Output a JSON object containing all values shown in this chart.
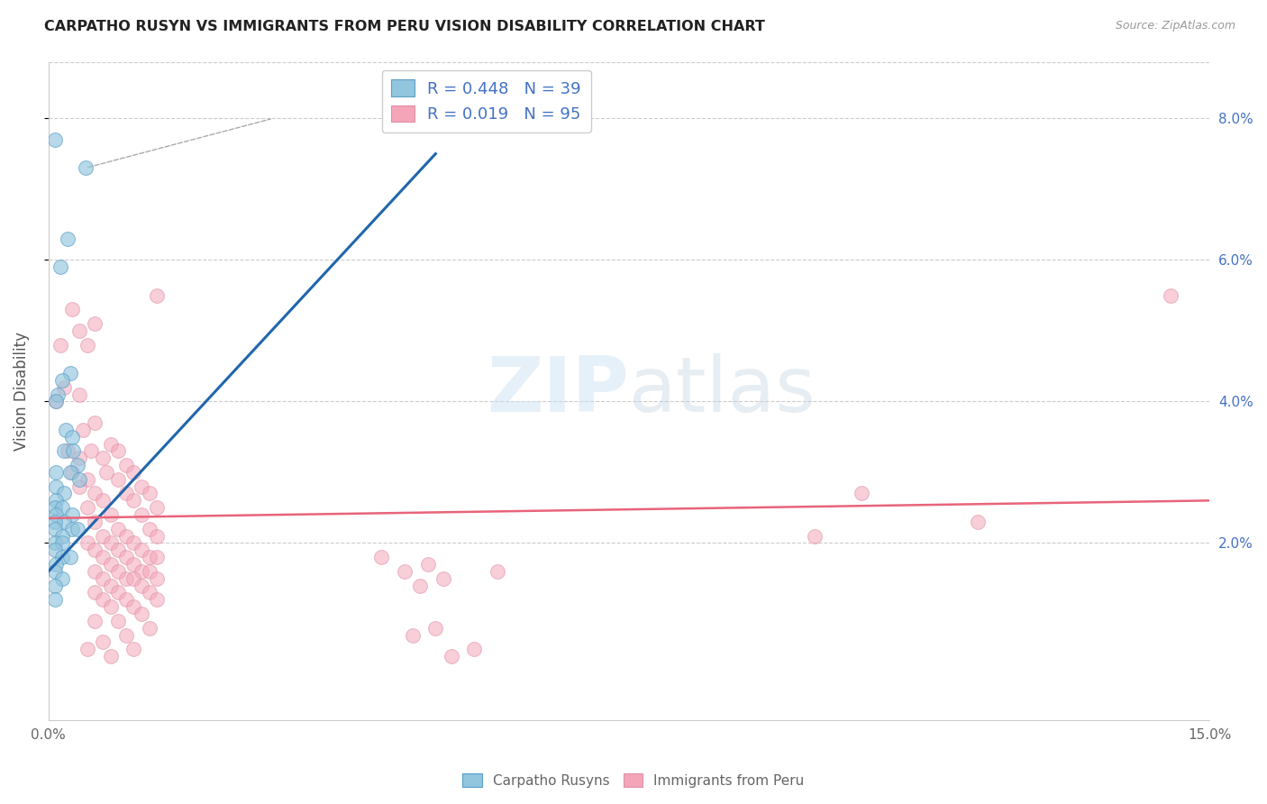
{
  "title": "CARPATHO RUSYN VS IMMIGRANTS FROM PERU VISION DISABILITY CORRELATION CHART",
  "source": "Source: ZipAtlas.com",
  "ylabel": "Vision Disability",
  "color_blue": "#92c5de",
  "color_pink": "#f4a6b8",
  "color_blue_line": "#2166ac",
  "color_pink_line": "#d6604d",
  "color_pink_line2": "#e8647a",
  "xmin": 0.0,
  "xmax": 0.15,
  "ymin": -0.005,
  "ymax": 0.088,
  "blue_scatter": [
    [
      0.0008,
      0.077
    ],
    [
      0.0048,
      0.073
    ],
    [
      0.0025,
      0.063
    ],
    [
      0.0015,
      0.059
    ],
    [
      0.0028,
      0.044
    ],
    [
      0.0018,
      0.043
    ],
    [
      0.0012,
      0.041
    ],
    [
      0.001,
      0.04
    ],
    [
      0.0022,
      0.036
    ],
    [
      0.003,
      0.035
    ],
    [
      0.002,
      0.033
    ],
    [
      0.0032,
      0.033
    ],
    [
      0.0038,
      0.031
    ],
    [
      0.0028,
      0.03
    ],
    [
      0.001,
      0.03
    ],
    [
      0.004,
      0.029
    ],
    [
      0.001,
      0.028
    ],
    [
      0.002,
      0.027
    ],
    [
      0.001,
      0.026
    ],
    [
      0.0008,
      0.025
    ],
    [
      0.0018,
      0.025
    ],
    [
      0.003,
      0.024
    ],
    [
      0.001,
      0.024
    ],
    [
      0.002,
      0.023
    ],
    [
      0.0008,
      0.023
    ],
    [
      0.003,
      0.022
    ],
    [
      0.0038,
      0.022
    ],
    [
      0.0008,
      0.022
    ],
    [
      0.0018,
      0.021
    ],
    [
      0.0008,
      0.02
    ],
    [
      0.0018,
      0.02
    ],
    [
      0.0008,
      0.019
    ],
    [
      0.0018,
      0.018
    ],
    [
      0.0028,
      0.018
    ],
    [
      0.001,
      0.017
    ],
    [
      0.0008,
      0.016
    ],
    [
      0.0018,
      0.015
    ],
    [
      0.0008,
      0.014
    ],
    [
      0.0008,
      0.012
    ]
  ],
  "pink_scatter": [
    [
      0.003,
      0.053
    ],
    [
      0.006,
      0.051
    ],
    [
      0.004,
      0.05
    ],
    [
      0.0015,
      0.048
    ],
    [
      0.005,
      0.048
    ],
    [
      0.002,
      0.042
    ],
    [
      0.001,
      0.04
    ],
    [
      0.006,
      0.037
    ],
    [
      0.0045,
      0.036
    ],
    [
      0.008,
      0.034
    ],
    [
      0.0025,
      0.033
    ],
    [
      0.0055,
      0.033
    ],
    [
      0.007,
      0.032
    ],
    [
      0.009,
      0.033
    ],
    [
      0.004,
      0.032
    ],
    [
      0.01,
      0.031
    ],
    [
      0.003,
      0.03
    ],
    [
      0.0075,
      0.03
    ],
    [
      0.011,
      0.03
    ],
    [
      0.005,
      0.029
    ],
    [
      0.009,
      0.029
    ],
    [
      0.004,
      0.028
    ],
    [
      0.012,
      0.028
    ],
    [
      0.006,
      0.027
    ],
    [
      0.01,
      0.027
    ],
    [
      0.013,
      0.027
    ],
    [
      0.007,
      0.026
    ],
    [
      0.011,
      0.026
    ],
    [
      0.005,
      0.025
    ],
    [
      0.014,
      0.025
    ],
    [
      0.008,
      0.024
    ],
    [
      0.012,
      0.024
    ],
    [
      0.006,
      0.023
    ],
    [
      0.009,
      0.022
    ],
    [
      0.013,
      0.022
    ],
    [
      0.007,
      0.021
    ],
    [
      0.01,
      0.021
    ],
    [
      0.014,
      0.021
    ],
    [
      0.008,
      0.02
    ],
    [
      0.011,
      0.02
    ],
    [
      0.005,
      0.02
    ],
    [
      0.012,
      0.019
    ],
    [
      0.009,
      0.019
    ],
    [
      0.006,
      0.019
    ],
    [
      0.013,
      0.018
    ],
    [
      0.01,
      0.018
    ],
    [
      0.007,
      0.018
    ],
    [
      0.014,
      0.018
    ],
    [
      0.011,
      0.017
    ],
    [
      0.008,
      0.017
    ],
    [
      0.012,
      0.016
    ],
    [
      0.009,
      0.016
    ],
    [
      0.006,
      0.016
    ],
    [
      0.013,
      0.016
    ],
    [
      0.01,
      0.015
    ],
    [
      0.007,
      0.015
    ],
    [
      0.014,
      0.015
    ],
    [
      0.011,
      0.015
    ],
    [
      0.008,
      0.014
    ],
    [
      0.012,
      0.014
    ],
    [
      0.009,
      0.013
    ],
    [
      0.006,
      0.013
    ],
    [
      0.013,
      0.013
    ],
    [
      0.01,
      0.012
    ],
    [
      0.007,
      0.012
    ],
    [
      0.014,
      0.012
    ],
    [
      0.011,
      0.011
    ],
    [
      0.008,
      0.011
    ],
    [
      0.012,
      0.01
    ],
    [
      0.009,
      0.009
    ],
    [
      0.006,
      0.009
    ],
    [
      0.013,
      0.008
    ],
    [
      0.01,
      0.007
    ],
    [
      0.007,
      0.006
    ],
    [
      0.005,
      0.005
    ],
    [
      0.011,
      0.005
    ],
    [
      0.008,
      0.004
    ],
    [
      0.014,
      0.055
    ],
    [
      0.004,
      0.041
    ],
    [
      0.055,
      0.005
    ],
    [
      0.052,
      0.004
    ],
    [
      0.049,
      0.017
    ],
    [
      0.046,
      0.016
    ],
    [
      0.058,
      0.016
    ],
    [
      0.043,
      0.018
    ],
    [
      0.05,
      0.008
    ],
    [
      0.047,
      0.007
    ],
    [
      0.051,
      0.015
    ],
    [
      0.048,
      0.014
    ],
    [
      0.099,
      0.021
    ],
    [
      0.105,
      0.027
    ],
    [
      0.12,
      0.023
    ],
    [
      0.145,
      0.055
    ]
  ],
  "blue_line_x": [
    0.0,
    0.05
  ],
  "blue_line_y": [
    0.016,
    0.075
  ],
  "pink_line_x": [
    0.0,
    0.15
  ],
  "pink_line_y": [
    0.0235,
    0.026
  ],
  "dashed_line_x": [
    0.0048,
    0.029
  ],
  "dashed_line_y": [
    0.073,
    0.08
  ]
}
